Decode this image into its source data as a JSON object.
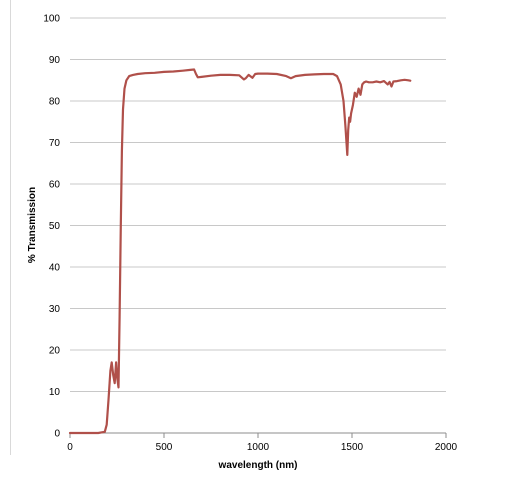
{
  "chart_data": {
    "type": "line",
    "title": "",
    "xlabel": "wavelength (nm)",
    "ylabel": "% Transmission",
    "xlim": [
      0,
      2000
    ],
    "ylim": [
      0,
      100
    ],
    "xticks": [
      0,
      500,
      1000,
      1500,
      2000
    ],
    "yticks": [
      0,
      10,
      20,
      30,
      40,
      50,
      60,
      70,
      80,
      90,
      100
    ],
    "grid": true,
    "legend": "none",
    "series": [
      {
        "color": "#b0504a",
        "x": [
          0,
          150,
          185,
          195,
          205,
          215,
          222,
          230,
          238,
          245,
          252,
          258,
          264,
          270,
          276,
          282,
          290,
          300,
          315,
          335,
          360,
          400,
          450,
          500,
          550,
          600,
          640,
          660,
          670,
          680,
          700,
          750,
          800,
          850,
          900,
          925,
          935,
          950,
          970,
          985,
          1000,
          1050,
          1100,
          1150,
          1175,
          1200,
          1250,
          1300,
          1350,
          1400,
          1420,
          1440,
          1455,
          1465,
          1475,
          1480,
          1485,
          1490,
          1495,
          1505,
          1515,
          1525,
          1535,
          1545,
          1555,
          1565,
          1575,
          1590,
          1610,
          1630,
          1650,
          1670,
          1690,
          1700,
          1710,
          1720,
          1740,
          1760,
          1780,
          1800,
          1810
        ],
        "y": [
          0,
          0,
          0.3,
          2,
          8,
          15,
          17,
          14,
          12,
          17,
          13,
          11,
          28,
          50,
          68,
          78,
          83,
          85,
          86,
          86.3,
          86.5,
          86.7,
          86.8,
          87,
          87.1,
          87.3,
          87.5,
          87.6,
          86.5,
          85.7,
          85.8,
          86.1,
          86.3,
          86.3,
          86.2,
          85.2,
          85.5,
          86.3,
          85.6,
          86.5,
          86.6,
          86.6,
          86.5,
          86,
          85.5,
          86,
          86.3,
          86.4,
          86.5,
          86.5,
          86,
          84,
          80,
          74,
          67,
          73,
          76,
          75,
          77,
          79,
          82,
          81,
          83,
          81.5,
          84,
          84.5,
          84.7,
          84.5,
          84.5,
          84.7,
          84.5,
          84.8,
          84,
          84.6,
          83.5,
          84.7,
          84.8,
          85,
          85.1,
          85,
          84.9
        ]
      }
    ]
  }
}
